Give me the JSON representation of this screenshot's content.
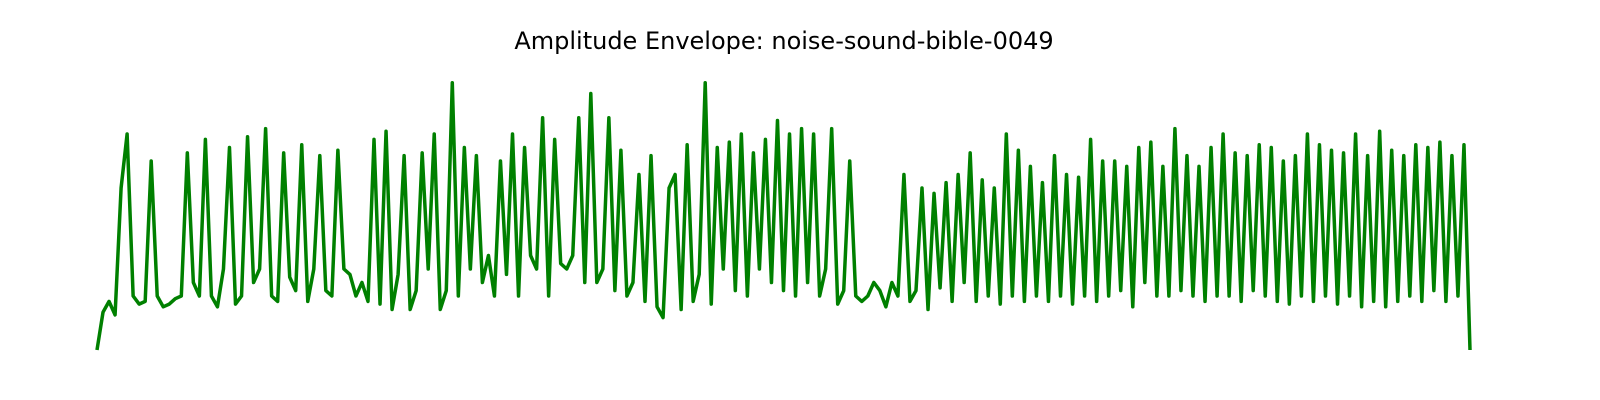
{
  "chart_data": {
    "type": "line",
    "title": "Amplitude Envelope: noise-sound-bible-0049",
    "color": "#008000",
    "ylim": [
      0,
      1
    ],
    "values": [
      0.0,
      0.14,
      0.18,
      0.13,
      0.6,
      0.8,
      0.2,
      0.17,
      0.18,
      0.7,
      0.2,
      0.16,
      0.17,
      0.19,
      0.2,
      0.73,
      0.25,
      0.2,
      0.78,
      0.2,
      0.16,
      0.3,
      0.75,
      0.17,
      0.2,
      0.79,
      0.25,
      0.3,
      0.82,
      0.2,
      0.18,
      0.73,
      0.27,
      0.22,
      0.76,
      0.18,
      0.3,
      0.72,
      0.22,
      0.2,
      0.74,
      0.3,
      0.28,
      0.2,
      0.25,
      0.18,
      0.78,
      0.17,
      0.81,
      0.15,
      0.28,
      0.72,
      0.15,
      0.22,
      0.73,
      0.3,
      0.8,
      0.15,
      0.22,
      0.99,
      0.2,
      0.75,
      0.3,
      0.72,
      0.25,
      0.35,
      0.2,
      0.7,
      0.28,
      0.8,
      0.2,
      0.75,
      0.35,
      0.3,
      0.86,
      0.2,
      0.78,
      0.32,
      0.3,
      0.35,
      0.86,
      0.25,
      0.95,
      0.25,
      0.3,
      0.86,
      0.22,
      0.74,
      0.2,
      0.25,
      0.65,
      0.18,
      0.72,
      0.16,
      0.12,
      0.6,
      0.65,
      0.15,
      0.76,
      0.18,
      0.28,
      0.99,
      0.17,
      0.75,
      0.3,
      0.77,
      0.22,
      0.8,
      0.2,
      0.73,
      0.3,
      0.78,
      0.25,
      0.85,
      0.22,
      0.8,
      0.2,
      0.82,
      0.25,
      0.8,
      0.2,
      0.3,
      0.82,
      0.17,
      0.22,
      0.7,
      0.2,
      0.18,
      0.2,
      0.25,
      0.22,
      0.16,
      0.25,
      0.2,
      0.65,
      0.18,
      0.22,
      0.6,
      0.15,
      0.58,
      0.23,
      0.62,
      0.18,
      0.65,
      0.25,
      0.73,
      0.18,
      0.63,
      0.2,
      0.6,
      0.17,
      0.8,
      0.2,
      0.74,
      0.18,
      0.68,
      0.2,
      0.62,
      0.18,
      0.72,
      0.2,
      0.65,
      0.17,
      0.64,
      0.2,
      0.78,
      0.18,
      0.7,
      0.2,
      0.7,
      0.22,
      0.68,
      0.16,
      0.75,
      0.25,
      0.77,
      0.2,
      0.68,
      0.2,
      0.82,
      0.22,
      0.72,
      0.2,
      0.68,
      0.18,
      0.75,
      0.2,
      0.8,
      0.2,
      0.73,
      0.18,
      0.72,
      0.22,
      0.76,
      0.2,
      0.75,
      0.18,
      0.7,
      0.17,
      0.72,
      0.2,
      0.8,
      0.18,
      0.76,
      0.2,
      0.74,
      0.17,
      0.73,
      0.2,
      0.8,
      0.16,
      0.72,
      0.18,
      0.81,
      0.16,
      0.74,
      0.18,
      0.72,
      0.2,
      0.76,
      0.18,
      0.75,
      0.22,
      0.77,
      0.18,
      0.72,
      0.2,
      0.76,
      0.0
    ]
  }
}
